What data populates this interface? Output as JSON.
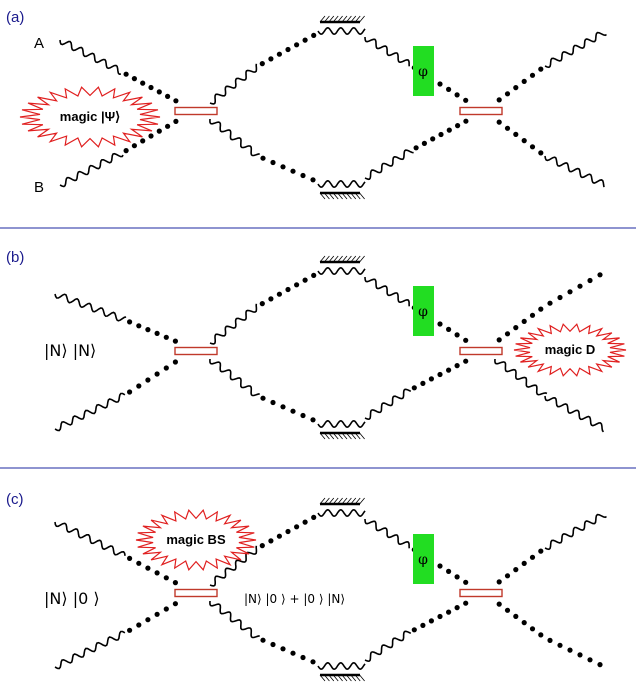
{
  "panels": [
    {
      "id": "a",
      "label": "(a)",
      "port_top": "A",
      "port_bottom": "B",
      "input_state": "",
      "magic_label": "magic |Ψ⟩",
      "magic_position": "input",
      "phase_label": "φ",
      "middle_state": ""
    },
    {
      "id": "b",
      "label": "(b)",
      "port_top": "",
      "port_bottom": "",
      "input_state": "|N⟩ |N⟩",
      "magic_label": "magic D",
      "magic_position": "output",
      "phase_label": "φ",
      "middle_state": ""
    },
    {
      "id": "c",
      "label": "(c)",
      "port_top": "",
      "port_bottom": "",
      "input_state": "|N⟩ |0 ⟩",
      "magic_label": "magic BS",
      "magic_position": "first-beamsplitter",
      "phase_label": "φ",
      "middle_state": "|N⟩ |0 ⟩ + |0 ⟩ |N⟩"
    }
  ],
  "colors": {
    "panel_label": "#1a1a8c",
    "divider": "#4a55b5",
    "beamsplitter": "#c0392b",
    "phase_shifter": "#22dd22",
    "magic_burst": "#e02020"
  }
}
